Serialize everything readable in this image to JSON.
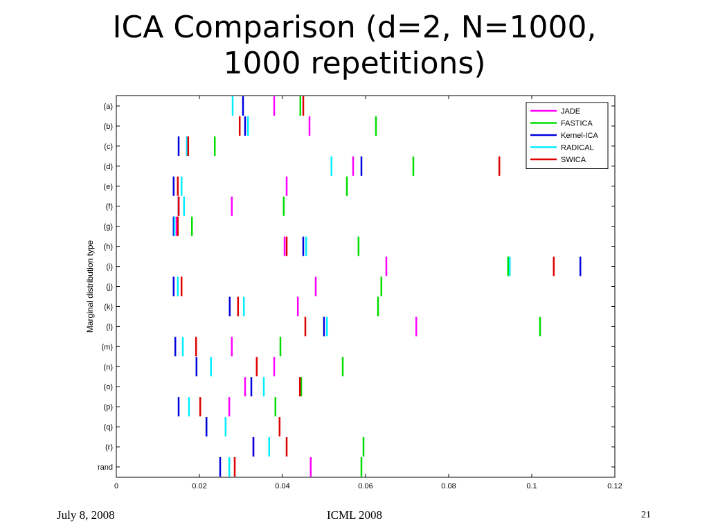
{
  "slide": {
    "title_line1": "ICA Comparison (d=2, N=1000,",
    "title_line2": "1000 repetitions)",
    "footer_date": "July 8, 2008",
    "footer_conference": "ICML 2008",
    "page_number": "21"
  },
  "chart_data": {
    "type": "scatter",
    "title": "",
    "xlabel": "",
    "ylabel": "Marginal distribution type",
    "xlim": [
      0,
      0.12
    ],
    "xticks": [
      "0",
      "0.02",
      "0.04",
      "0.06",
      "0.08",
      "0.1",
      "0.12"
    ],
    "xtick_values": [
      0,
      0.02,
      0.04,
      0.06,
      0.08,
      0.1,
      0.12
    ],
    "categories": [
      "(a)",
      "(b)",
      "(c)",
      "(d)",
      "(e)",
      "(f)",
      "(g)",
      "(h)",
      "(i)",
      "(j)",
      "(k)",
      "(l)",
      "(m)",
      "(n)",
      "(o)",
      "(p)",
      "(q)",
      "(r)",
      "rand"
    ],
    "legend_position": "top-right",
    "marker": "vertical-tick",
    "series": [
      {
        "name": "JADE",
        "color": "#ff00ff",
        "values": [
          0.038,
          0.0465,
          0.017,
          0.057,
          0.041,
          0.0278,
          0.0145,
          0.0405,
          0.065,
          0.048,
          0.0437,
          0.0722,
          0.0278,
          0.038,
          0.031,
          0.0272,
          0.0217,
          0.033,
          0.0468
        ]
      },
      {
        "name": "FASTICA",
        "color": "#00dd00",
        "values": [
          0.0443,
          0.0625,
          0.0237,
          0.0715,
          0.0555,
          0.0403,
          0.0182,
          0.0583,
          0.0943,
          0.0638,
          0.063,
          0.102,
          0.0395,
          0.0545,
          0.0445,
          0.0383,
          0.0217,
          0.0595,
          0.059
        ]
      },
      {
        "name": "Kernel-ICA",
        "color": "#0000dd",
        "values": [
          0.0305,
          0.031,
          0.015,
          0.059,
          0.0138,
          0.015,
          0.0138,
          0.045,
          0.1117,
          0.0138,
          0.0273,
          0.05,
          0.0142,
          0.0193,
          0.0325,
          0.015,
          0.0217,
          0.033,
          0.025
        ]
      },
      {
        "name": "RADICAL",
        "color": "#00eeff",
        "values": [
          0.028,
          0.0317,
          0.017,
          0.0518,
          0.0157,
          0.0163,
          0.014,
          0.0457,
          0.0947,
          0.0148,
          0.0307,
          0.0507,
          0.016,
          0.0228,
          0.0355,
          0.0175,
          0.0263,
          0.0368,
          0.0272
        ]
      },
      {
        "name": "SWICA",
        "color": "#dd0000",
        "values": [
          0.045,
          0.0297,
          0.0173,
          0.0922,
          0.0148,
          0.015,
          0.0148,
          0.041,
          0.1053,
          0.0157,
          0.0293,
          0.0455,
          0.0192,
          0.0338,
          0.0442,
          0.0202,
          0.0393,
          0.041,
          0.0285
        ]
      }
    ]
  }
}
